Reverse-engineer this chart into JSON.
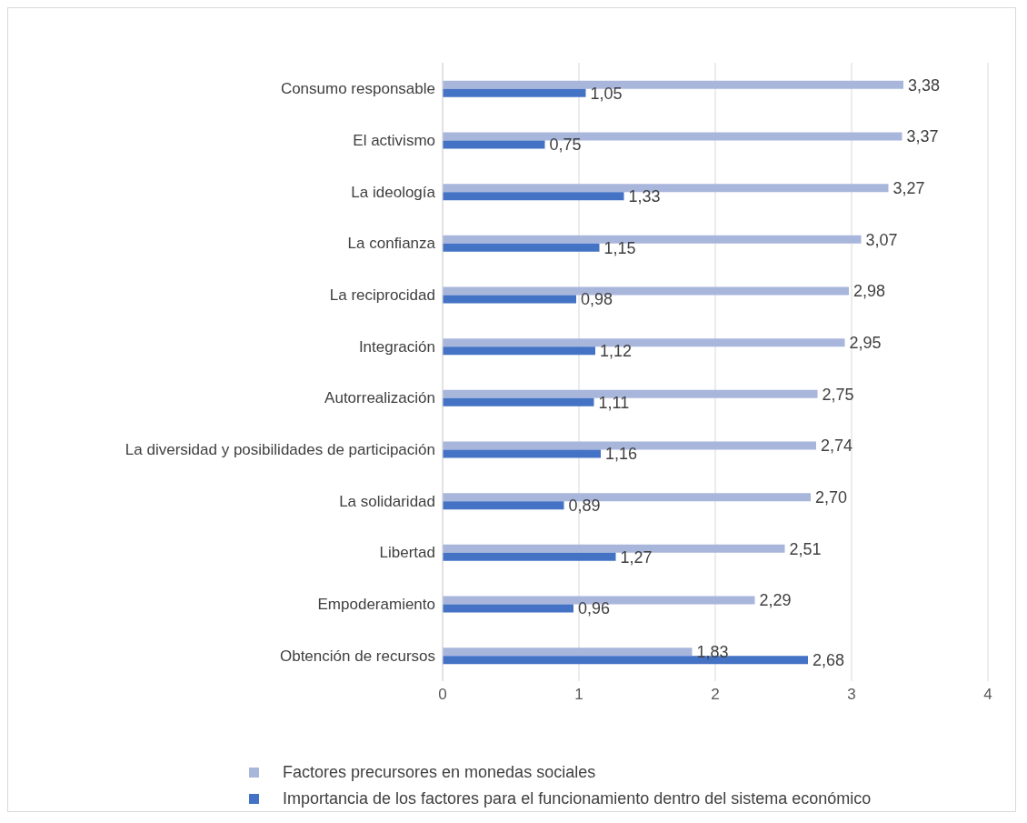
{
  "chart_data": {
    "type": "bar",
    "orientation": "horizontal",
    "categories": [
      "Consumo responsable",
      "El activismo",
      "La ideología",
      "La confianza",
      "La reciprocidad",
      "Integración",
      "Autorrealización",
      "La diversidad y posibilidades de participación",
      "La solidaridad",
      "Libertad",
      "Empoderamiento",
      "Obtención de recursos"
    ],
    "series": [
      {
        "name": "Factores precursores en monedas sociales",
        "color": "#a9b6dc",
        "values": [
          3.38,
          3.37,
          3.27,
          3.07,
          2.98,
          2.95,
          2.75,
          2.74,
          2.7,
          2.51,
          2.29,
          1.83
        ],
        "value_labels": [
          "3,38",
          "3,37",
          "3,27",
          "3,07",
          "2,98",
          "2,95",
          "2,75",
          "2,74",
          "2,70",
          "2,51",
          "2,29",
          "1,83"
        ]
      },
      {
        "name": "Importancia de los factores para el funcionamiento dentro del sistema económico",
        "color": "#4472c4",
        "values": [
          1.05,
          0.75,
          1.33,
          1.15,
          0.98,
          1.12,
          1.11,
          1.16,
          0.89,
          1.27,
          0.96,
          2.68
        ],
        "value_labels": [
          "1,05",
          "0,75",
          "1,33",
          "1,15",
          "0,98",
          "1,12",
          "1,11",
          "1,16",
          "0,89",
          "1,27",
          "0,96",
          "2,68"
        ]
      }
    ],
    "xlim": [
      0,
      4
    ],
    "xticks": [
      0,
      1,
      2,
      3,
      4
    ],
    "grid": "x",
    "legend": "bottom"
  }
}
